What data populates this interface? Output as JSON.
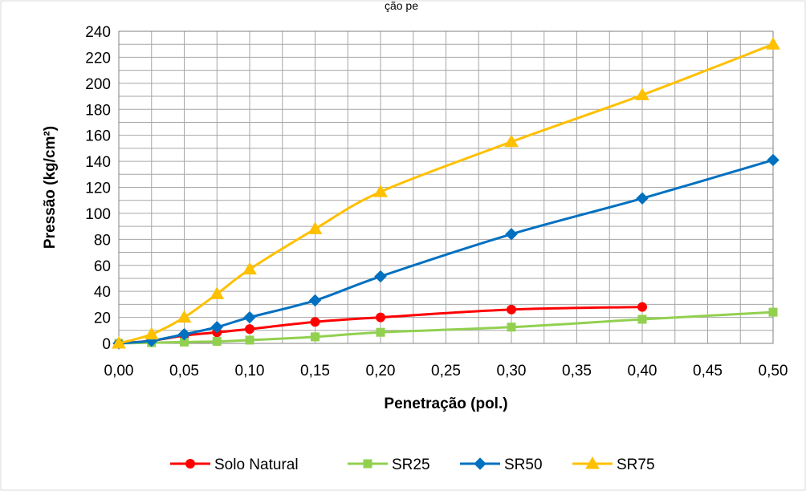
{
  "header_fragment": "ção pe",
  "chart_data": {
    "type": "line",
    "title": "",
    "xlabel": "Penetração (pol.)",
    "ylabel": "Pressão (kg/cm²)",
    "xlim": [
      0,
      0.5
    ],
    "ylim": [
      0,
      240
    ],
    "x_ticks": [
      "0,00",
      "0,05",
      "0,10",
      "0,15",
      "0,20",
      "0,25",
      "0,30",
      "0,35",
      "0,40",
      "0,45",
      "0,50"
    ],
    "y_ticks": [
      "0",
      "20",
      "40",
      "60",
      "80",
      "100",
      "120",
      "140",
      "160",
      "180",
      "200",
      "220",
      "240"
    ],
    "grid": true,
    "legend_position": "bottom",
    "series": [
      {
        "name": "Solo Natural",
        "color": "#ff0000",
        "marker": "circle",
        "points": [
          [
            0,
            0
          ],
          [
            0.025,
            2
          ],
          [
            0.05,
            6
          ],
          [
            0.075,
            8.5
          ],
          [
            0.1,
            11
          ],
          [
            0.15,
            16.5
          ],
          [
            0.2,
            20
          ],
          [
            0.3,
            26
          ],
          [
            0.4,
            28
          ]
        ]
      },
      {
        "name": "SR25",
        "color": "#92d050",
        "marker": "square",
        "points": [
          [
            0,
            0
          ],
          [
            0.025,
            0.5
          ],
          [
            0.05,
            1
          ],
          [
            0.075,
            1.5
          ],
          [
            0.1,
            2.5
          ],
          [
            0.15,
            5
          ],
          [
            0.2,
            8.5
          ],
          [
            0.3,
            12.5
          ],
          [
            0.4,
            18.5
          ],
          [
            0.5,
            24
          ]
        ]
      },
      {
        "name": "SR50",
        "color": "#0070c0",
        "marker": "diamond",
        "points": [
          [
            0,
            0
          ],
          [
            0.025,
            2
          ],
          [
            0.05,
            7
          ],
          [
            0.075,
            12.5
          ],
          [
            0.1,
            20
          ],
          [
            0.15,
            33
          ],
          [
            0.2,
            51.5
          ],
          [
            0.3,
            84
          ],
          [
            0.4,
            111.5
          ],
          [
            0.5,
            141
          ]
        ]
      },
      {
        "name": "SR75",
        "color": "#ffc000",
        "marker": "triangle",
        "points": [
          [
            0,
            0
          ],
          [
            0.025,
            7
          ],
          [
            0.05,
            20
          ],
          [
            0.075,
            38
          ],
          [
            0.1,
            57
          ],
          [
            0.15,
            88
          ],
          [
            0.2,
            116.5
          ],
          [
            0.3,
            155
          ],
          [
            0.4,
            191
          ],
          [
            0.5,
            230
          ]
        ]
      }
    ]
  }
}
